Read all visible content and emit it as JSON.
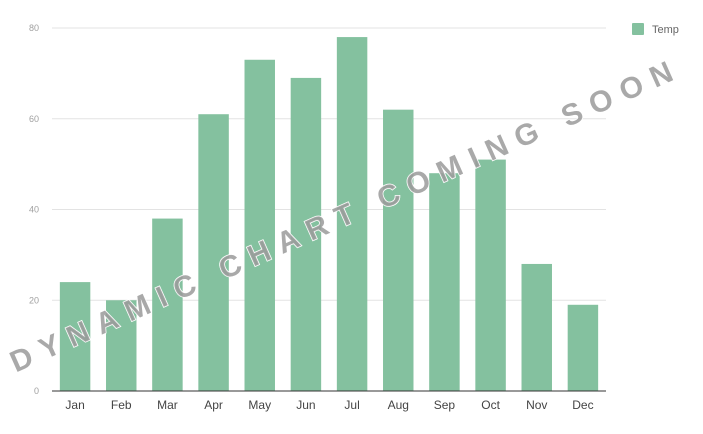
{
  "chart_data": {
    "type": "bar",
    "categories": [
      "Jan",
      "Feb",
      "Mar",
      "Apr",
      "May",
      "Jun",
      "Jul",
      "Aug",
      "Sep",
      "Oct",
      "Nov",
      "Dec"
    ],
    "series": [
      {
        "name": "Temp",
        "values": [
          24,
          20,
          38,
          61,
          73,
          69,
          78,
          62,
          48,
          51,
          28,
          19
        ]
      }
    ],
    "yticks": [
      "0",
      "20",
      "40",
      "60",
      "80"
    ],
    "ylim": [
      0,
      80
    ],
    "grid": true,
    "legend_position": "top-right",
    "bar_color": "#84c19f",
    "watermark": "DYNAMIC CHART COMING SOON"
  }
}
